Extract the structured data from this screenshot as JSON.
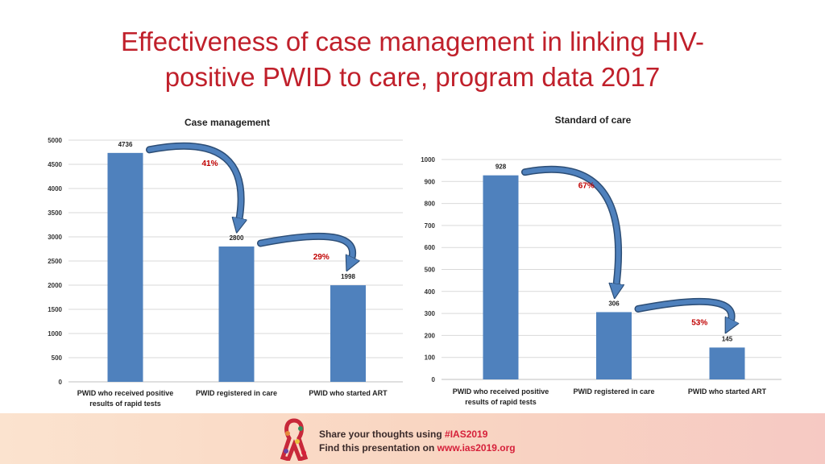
{
  "slide": {
    "title_line1": "Effectiveness of case management in linking HIV-",
    "title_line2": "positive PWID to care, program data 2017"
  },
  "footer": {
    "share_prefix": "Share your thoughts using ",
    "share_tag": "#IAS2019",
    "find_prefix": "Find this presentation on ",
    "find_url": "www.ias2019.org"
  },
  "colors": {
    "bar": "#4f81bd",
    "arrow": "#4f81bd",
    "pct": "#c00000",
    "title": "#c0202b"
  },
  "chart_data": [
    {
      "type": "bar",
      "title": "Case management",
      "categories": [
        "PWID who received positive results of rapid tests",
        "PWID registered in care",
        "PWID who started ART"
      ],
      "category_lines": [
        [
          "PWID who received positive",
          "results of rapid tests"
        ],
        [
          "PWID registered in care"
        ],
        [
          "PWID who started ART"
        ]
      ],
      "values": [
        4736,
        2800,
        1998
      ],
      "ylim": [
        0,
        5000
      ],
      "yticks": [
        0,
        500,
        1000,
        1500,
        2000,
        2500,
        3000,
        3500,
        4000,
        4500,
        5000
      ],
      "grid": true,
      "annotations": [
        {
          "text": "41%",
          "from": 0,
          "to": 1
        },
        {
          "text": "29%",
          "from": 1,
          "to": 2
        }
      ]
    },
    {
      "type": "bar",
      "title": "Standard of care",
      "categories": [
        "PWID who received positive results of rapid tests",
        "PWID registered in care",
        "PWID who started ART"
      ],
      "category_lines": [
        [
          "PWID who received positive",
          "results of rapid tests"
        ],
        [
          "PWID registered in care"
        ],
        [
          "PWID who started ART"
        ]
      ],
      "values": [
        928,
        306,
        145
      ],
      "ylim": [
        0,
        1000
      ],
      "yticks": [
        0,
        100,
        200,
        300,
        400,
        500,
        600,
        700,
        800,
        900,
        1000
      ],
      "grid": true,
      "annotations": [
        {
          "text": "67%",
          "from": 0,
          "to": 1
        },
        {
          "text": "53%",
          "from": 1,
          "to": 2
        }
      ]
    }
  ]
}
